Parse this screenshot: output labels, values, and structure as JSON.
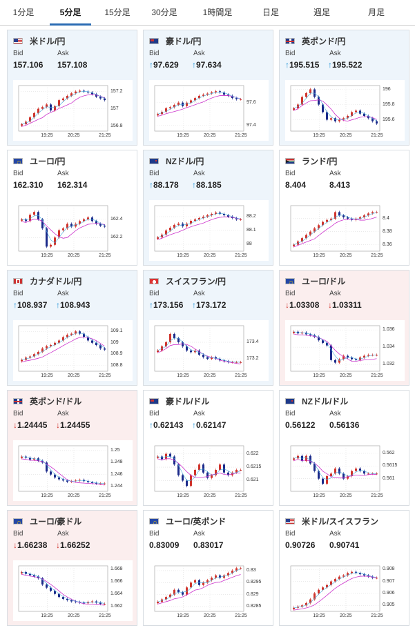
{
  "tabs": [
    "1分足",
    "5分足",
    "15分足",
    "30分足",
    "1時間足",
    "日足",
    "週足",
    "月足"
  ],
  "active_tab": 1,
  "labels": {
    "bid": "Bid",
    "ask": "Ask"
  },
  "x_ticks": [
    "19:25",
    "20:25",
    "21:25"
  ],
  "colors": {
    "accent": "#2a6bb3",
    "up_candle": "#d0342c",
    "down_candle": "#1b2a8a",
    "ma_line": "#cc33cc",
    "ma_line2": "#44aadd",
    "up_text": "#1a8fd6",
    "down_text": "#d0342c"
  },
  "cards": [
    {
      "pair": "米ドル/円",
      "flag": "us",
      "bg": "blue",
      "dir": "",
      "bid": "157.106",
      "ask": "157.108",
      "yticks": [
        "157.2",
        "157",
        "156.8"
      ],
      "ymin": 156.74,
      "ymax": 157.27,
      "path": [
        156.82,
        156.85,
        156.9,
        156.95,
        157.0,
        157.02,
        157.05,
        156.98,
        157.03,
        157.1,
        157.12,
        157.15,
        157.18,
        157.2,
        157.21,
        157.2,
        157.19,
        157.17,
        157.14,
        157.12,
        157.1
      ]
    },
    {
      "pair": "豪ドル/円",
      "flag": "au",
      "bg": "blue",
      "dir": "up",
      "bid": "97.629",
      "ask": "97.634",
      "yticks": [
        "97.6",
        "97.4"
      ],
      "ymin": 97.35,
      "ymax": 97.75,
      "path": [
        97.5,
        97.52,
        97.55,
        97.56,
        97.58,
        97.6,
        97.57,
        97.6,
        97.62,
        97.64,
        97.66,
        97.67,
        97.68,
        97.69,
        97.7,
        97.69,
        97.67,
        97.66,
        97.64,
        97.63,
        97.63
      ]
    },
    {
      "pair": "英ポンド/円",
      "flag": "uk",
      "bg": "blue",
      "dir": "up",
      "bid": "195.515",
      "ask": "195.522",
      "yticks": [
        "196",
        "195.8",
        "195.6"
      ],
      "ymin": 195.45,
      "ymax": 196.05,
      "path": [
        195.75,
        195.8,
        195.9,
        195.95,
        196.0,
        195.9,
        195.8,
        195.7,
        195.6,
        195.62,
        195.58,
        195.6,
        195.62,
        195.65,
        195.7,
        195.72,
        195.68,
        195.65,
        195.62,
        195.58,
        195.55
      ]
    },
    {
      "pair": "ユーロ/円",
      "flag": "eu",
      "bg": "white",
      "dir": "",
      "bid": "162.310",
      "ask": "162.314",
      "yticks": [
        "162.4",
        "162.2"
      ],
      "ymin": 162.05,
      "ymax": 162.55,
      "path": [
        162.4,
        162.38,
        162.45,
        162.48,
        162.4,
        162.3,
        162.1,
        162.12,
        162.2,
        162.28,
        162.3,
        162.35,
        162.32,
        162.35,
        162.38,
        162.4,
        162.42,
        162.38,
        162.35,
        162.33,
        162.32
      ]
    },
    {
      "pair": "NZドル/円",
      "flag": "nz",
      "bg": "blue",
      "dir": "up",
      "bid": "88.178",
      "ask": "88.185",
      "yticks": [
        "88.2",
        "88.1",
        "88"
      ],
      "ymin": 87.95,
      "ymax": 88.28,
      "path": [
        88.05,
        88.07,
        88.1,
        88.12,
        88.14,
        88.15,
        88.13,
        88.15,
        88.17,
        88.18,
        88.19,
        88.2,
        88.21,
        88.22,
        88.23,
        88.22,
        88.21,
        88.2,
        88.19,
        88.18,
        88.18
      ]
    },
    {
      "pair": "ランド/円",
      "flag": "za",
      "bg": "white",
      "dir": "",
      "bid": "8.404",
      "ask": "8.413",
      "yticks": [
        "8.4",
        "8.38",
        "8.36"
      ],
      "ymin": 8.35,
      "ymax": 8.42,
      "path": [
        8.36,
        8.365,
        8.37,
        8.375,
        8.38,
        8.385,
        8.39,
        8.395,
        8.398,
        8.4,
        8.41,
        8.405,
        8.402,
        8.4,
        8.398,
        8.4,
        8.402,
        8.405,
        8.408,
        8.41,
        8.41
      ]
    },
    {
      "pair": "カナダドル/円",
      "flag": "ca",
      "bg": "blue",
      "dir": "up",
      "bid": "108.937",
      "ask": "108.943",
      "yticks": [
        "109.1",
        "109",
        "108.9",
        "108.8"
      ],
      "ymin": 108.75,
      "ymax": 109.15,
      "path": [
        108.85,
        108.87,
        108.88,
        108.9,
        108.92,
        108.95,
        108.97,
        108.98,
        109.0,
        109.02,
        109.05,
        109.07,
        109.08,
        109.1,
        109.08,
        109.05,
        109.02,
        109.0,
        108.98,
        108.95,
        108.94
      ]
    },
    {
      "pair": "スイスフラン/円",
      "flag": "ch",
      "bg": "blue",
      "dir": "up",
      "bid": "173.156",
      "ask": "173.172",
      "yticks": [
        "173.4",
        "173.2"
      ],
      "ymin": 173.05,
      "ymax": 173.6,
      "path": [
        173.3,
        173.35,
        173.4,
        173.5,
        173.45,
        173.4,
        173.35,
        173.3,
        173.28,
        173.3,
        173.25,
        173.22,
        173.2,
        173.22,
        173.2,
        173.18,
        173.17,
        173.16,
        173.16,
        173.16,
        173.16
      ]
    },
    {
      "pair": "ユーロ/ドル",
      "flag": "eu",
      "bg": "pink",
      "dir": "dn",
      "bid": "1.03308",
      "ask": "1.03311",
      "yticks": [
        "1.036",
        "1.034",
        "1.032"
      ],
      "ymin": 1.0312,
      "ymax": 1.0365,
      "path": [
        1.0358,
        1.0356,
        1.0357,
        1.0355,
        1.0354,
        1.0352,
        1.0348,
        1.0345,
        1.0342,
        1.0325,
        1.0322,
        1.0326,
        1.033,
        1.0328,
        1.0326,
        1.0325,
        1.0328,
        1.033,
        1.0331,
        1.0331,
        1.0331
      ]
    },
    {
      "pair": "英ポンド/ドル",
      "flag": "uk",
      "bg": "pink",
      "dir": "dn",
      "bid": "1.24445",
      "ask": "1.24455",
      "yticks": [
        "1.25",
        "1.248",
        "1.246",
        "1.244"
      ],
      "ymin": 1.2432,
      "ymax": 1.2508,
      "path": [
        1.249,
        1.2488,
        1.2485,
        1.2487,
        1.2483,
        1.248,
        1.2465,
        1.246,
        1.2455,
        1.2452,
        1.245,
        1.2448,
        1.2449,
        1.245,
        1.2451,
        1.2449,
        1.2447,
        1.2446,
        1.2445,
        1.2445,
        1.2445
      ]
    },
    {
      "pair": "豪ドル/ドル",
      "flag": "au",
      "bg": "white",
      "dir": "up",
      "bid": "0.62143",
      "ask": "0.62147",
      "yticks": [
        "0.622",
        "0.6215",
        "0.621"
      ],
      "ymin": 0.6206,
      "ymax": 0.6223,
      "path": [
        0.6219,
        0.6218,
        0.622,
        0.6219,
        0.6216,
        0.6212,
        0.621,
        0.6208,
        0.6212,
        0.6214,
        0.6216,
        0.6213,
        0.6211,
        0.6212,
        0.6214,
        0.6216,
        0.6213,
        0.6212,
        0.6213,
        0.6214,
        0.6214
      ]
    },
    {
      "pair": "NZドル/ドル",
      "flag": "nz",
      "bg": "white",
      "dir": "",
      "bid": "0.56122",
      "ask": "0.56136",
      "yticks": [
        "0.562",
        "0.5615",
        "0.561"
      ],
      "ymin": 0.5605,
      "ymax": 0.5623,
      "path": [
        0.5618,
        0.5619,
        0.5617,
        0.5619,
        0.5616,
        0.5613,
        0.561,
        0.5608,
        0.5611,
        0.5612,
        0.5614,
        0.5612,
        0.561,
        0.5611,
        0.5613,
        0.5614,
        0.5613,
        0.5612,
        0.5612,
        0.5612,
        0.5612
      ]
    },
    {
      "pair": "ユーロ/豪ドル",
      "flag": "eu",
      "bg": "pink",
      "dir": "dn",
      "bid": "1.66238",
      "ask": "1.66252",
      "yticks": [
        "1.668",
        "1.666",
        "1.664",
        "1.662"
      ],
      "ymin": 1.6612,
      "ymax": 1.6685,
      "path": [
        1.6675,
        1.6672,
        1.667,
        1.6668,
        1.6665,
        1.6655,
        1.665,
        1.6645,
        1.664,
        1.6635,
        1.6632,
        1.663,
        1.6628,
        1.6627,
        1.6626,
        1.6625,
        1.6627,
        1.6628,
        1.6626,
        1.6624,
        1.6624
      ]
    },
    {
      "pair": "ユーロ/英ポンド",
      "flag": "eu",
      "bg": "white",
      "dir": "",
      "bid": "0.83009",
      "ask": "0.83017",
      "yticks": [
        "0.83",
        "0.8295",
        "0.829",
        "0.8285"
      ],
      "ymin": 0.8283,
      "ymax": 0.8302,
      "path": [
        0.8287,
        0.8288,
        0.8289,
        0.829,
        0.8292,
        0.8291,
        0.829,
        0.8293,
        0.8295,
        0.8296,
        0.8294,
        0.8295,
        0.8296,
        0.8297,
        0.8298,
        0.8297,
        0.8298,
        0.8299,
        0.83,
        0.8301,
        0.8301
      ]
    },
    {
      "pair": "米ドル/スイスフラン",
      "flag": "us",
      "bg": "white",
      "dir": "",
      "bid": "0.90726",
      "ask": "0.90741",
      "yticks": [
        "0.908",
        "0.907",
        "0.906",
        "0.905"
      ],
      "ymin": 0.9045,
      "ymax": 0.9083,
      "path": [
        0.9048,
        0.9049,
        0.905,
        0.9052,
        0.9055,
        0.906,
        0.9063,
        0.9065,
        0.9067,
        0.907,
        0.9072,
        0.9074,
        0.9075,
        0.9077,
        0.9078,
        0.9077,
        0.9076,
        0.9075,
        0.9074,
        0.9073,
        0.9073
      ]
    }
  ]
}
